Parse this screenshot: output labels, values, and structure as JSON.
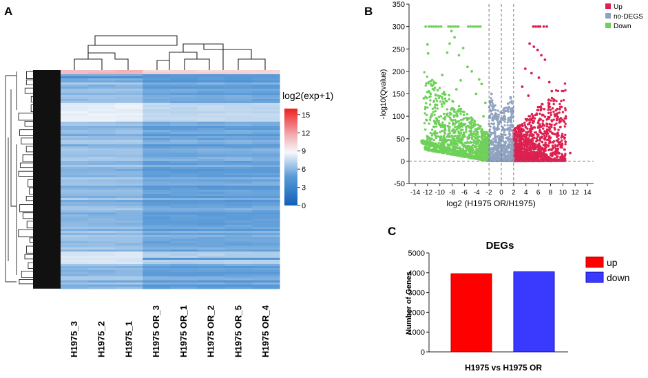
{
  "panels": {
    "a": "A",
    "b": "B",
    "c": "C"
  },
  "colors": {
    "up": "#dc2050",
    "no": "#8fa3c0",
    "down": "#6fd05a",
    "bar_up": "#ff0000",
    "bar_down": "#3a3aff",
    "cmap": [
      "#1060b8",
      "#5b9bd8",
      "#f6f8fb",
      "#f2b0b6",
      "#ee2020"
    ]
  },
  "chart_data": [
    {
      "type": "heatmap",
      "title": "",
      "columns": [
        "H1975_3",
        "H1975_2",
        "H1975_1",
        "H1975 OR_3",
        "H1975 OR_1",
        "H1975 OR_2",
        "H1975 OR_5",
        "H1975 OR_4"
      ],
      "colorbar": {
        "label": "log2(exp+1)",
        "ticks": [
          0,
          3,
          6,
          9,
          12,
          15
        ],
        "range": [
          0,
          16
        ]
      },
      "group_means": [
        {
          "group": "H1975",
          "value": 6.4
        },
        {
          "group": "H1975 OR",
          "value": 5.3
        }
      ]
    },
    {
      "type": "scatter",
      "title": "",
      "xlabel": "log2 (H1975 OR/H1975)",
      "ylabel": "-log10(Qvalue)",
      "xlim": [
        -15,
        15
      ],
      "ylim": [
        -50,
        350
      ],
      "xticks": [
        -14,
        -12,
        -10,
        -8,
        -6,
        -4,
        -2,
        0,
        2,
        4,
        6,
        8,
        10,
        12,
        14
      ],
      "yticks": [
        -50,
        0,
        50,
        100,
        150,
        200,
        250,
        300,
        350
      ],
      "thresholds": {
        "x": [
          -2,
          0,
          2
        ],
        "y": [
          0
        ]
      },
      "legend": [
        {
          "name": "Up",
          "color": "up"
        },
        {
          "name": "no-DEGS",
          "color": "no"
        },
        {
          "name": "Down",
          "color": "down"
        }
      ],
      "legend_position": "top-right",
      "series": [
        {
          "name": "Down",
          "points": [
            [
              -12.3,
              300
            ],
            [
              -11.8,
              300
            ],
            [
              -11.4,
              300
            ],
            [
              -11,
              300
            ],
            [
              -10.6,
              300
            ],
            [
              -10.2,
              300
            ],
            [
              -9.8,
              300
            ],
            [
              -8.6,
              300
            ],
            [
              -8.2,
              300
            ],
            [
              -7.8,
              300
            ],
            [
              -7.4,
              300
            ],
            [
              -7,
              300
            ],
            [
              -5.4,
              300
            ],
            [
              -5,
              300
            ],
            [
              -4.6,
              300
            ],
            [
              -4.2,
              300
            ],
            [
              -3.8,
              300
            ],
            [
              -3.4,
              300
            ],
            [
              -12,
              260
            ],
            [
              -11.9,
              240
            ],
            [
              -8.1,
              290
            ],
            [
              -7.6,
              276
            ],
            [
              -8.4,
              262
            ],
            [
              -8.8,
              242
            ],
            [
              -6.9,
              236
            ],
            [
              -6.2,
              252
            ],
            [
              -12.6,
              140
            ],
            [
              -11.2,
              168
            ],
            [
              -9.6,
              192
            ],
            [
              -5.5,
              210
            ],
            [
              -4.8,
              200
            ],
            [
              -3.6,
              182
            ],
            [
              -10.8,
              120
            ],
            [
              -9.2,
              148
            ],
            [
              -7.3,
              160
            ],
            [
              -6.6,
              180
            ],
            [
              -4.1,
              150
            ],
            [
              -3.2,
              172
            ],
            [
              -2.6,
              130
            ],
            [
              -2.9,
              100
            ]
          ]
        },
        {
          "name": "Up",
          "points": [
            [
              5.2,
              300
            ],
            [
              5.6,
              300
            ],
            [
              6,
              300
            ],
            [
              6.3,
              300
            ],
            [
              6.9,
              300
            ],
            [
              7.4,
              300
            ],
            [
              5.3,
              255
            ],
            [
              5.9,
              248
            ],
            [
              6.5,
              236
            ],
            [
              7.1,
              226
            ],
            [
              4.6,
              262
            ],
            [
              3.9,
              206
            ],
            [
              4.9,
              196
            ],
            [
              6.1,
              186
            ],
            [
              7.8,
              176
            ],
            [
              8.2,
              156
            ],
            [
              3.4,
              166
            ],
            [
              4.4,
              146
            ],
            [
              9.1,
              116
            ],
            [
              8.6,
              136
            ],
            [
              9.6,
              76
            ],
            [
              10.3,
              52
            ],
            [
              11.2,
              18
            ],
            [
              9.9,
              36
            ]
          ]
        },
        {
          "name": "no-DEGS",
          "points": [
            [
              -1.6,
              150
            ],
            [
              -1.2,
              122
            ],
            [
              -0.8,
              100
            ],
            [
              -0.4,
              86
            ],
            [
              0.3,
              92
            ],
            [
              0.7,
              112
            ],
            [
              1.1,
              128
            ],
            [
              1.5,
              142
            ]
          ]
        }
      ]
    },
    {
      "type": "bar",
      "title": "DEGs",
      "xlabel": "H1975 vs H1975 OR",
      "ylabel": "Number of Genes",
      "ylim": [
        0,
        5000
      ],
      "yticks": [
        0,
        1000,
        2000,
        3000,
        4000,
        5000
      ],
      "categories": [
        "up",
        "down"
      ],
      "values": [
        3950,
        4050
      ],
      "legend": [
        "up",
        "down"
      ],
      "legend_position": "right"
    }
  ]
}
